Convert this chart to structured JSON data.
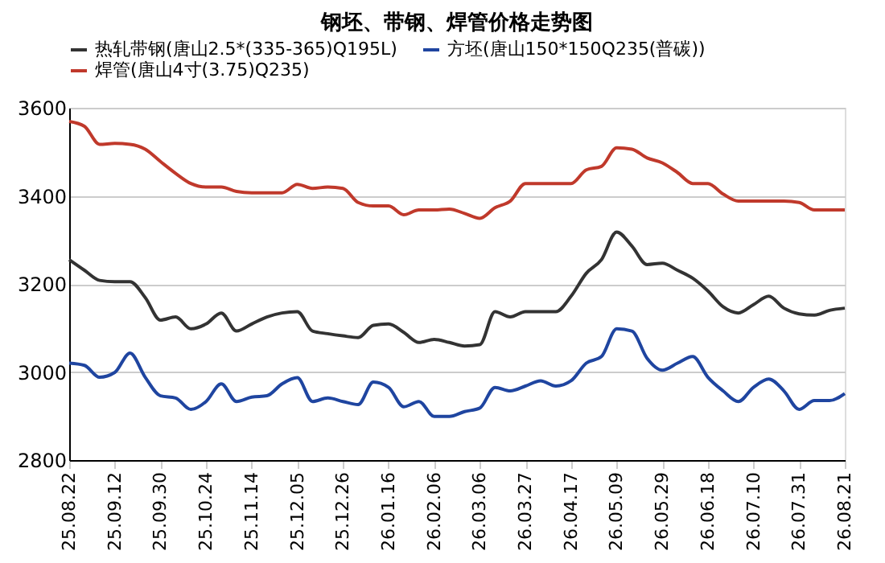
{
  "chart_data": {
    "type": "line",
    "title": "钢坯、带钢、焊管价格走势图",
    "categories": [
      "25.08.22",
      null,
      null,
      "25.09.12",
      null,
      null,
      "25.09.30",
      null,
      null,
      "25.10.24",
      null,
      null,
      "25.11.14",
      null,
      null,
      "25.12.05",
      null,
      null,
      "25.12.26",
      null,
      null,
      "26.01.16",
      null,
      null,
      "26.02.06",
      null,
      null,
      "26.03.06",
      null,
      null,
      "26.03.27",
      null,
      null,
      "26.04.17",
      null,
      null,
      "26.05.09",
      null,
      null,
      "26.05.29",
      null,
      null,
      "26.06.18",
      null,
      null,
      "26.07.10",
      null,
      null,
      "26.07.31",
      null,
      null,
      "26.08.21"
    ],
    "series": [
      {
        "name": "热轧带钢(唐山2.5*(335-365)Q195L)",
        "color": "#333333",
        "values": [
          3255,
          3231,
          3208,
          3205,
          3205,
          3169,
          3118,
          3125,
          3098,
          3109,
          3134,
          3093,
          3109,
          3125,
          3134,
          3137,
          3093,
          3087,
          3082,
          3078,
          3106,
          3109,
          3090,
          3067,
          3074,
          3067,
          3059,
          3062,
          3137,
          3125,
          3137,
          3137,
          3137,
          3172,
          3224,
          3255,
          3318,
          3286,
          3244,
          3247,
          3231,
          3213,
          3184,
          3148,
          3134,
          3153,
          3172,
          3145,
          3132,
          3129,
          3140,
          3145
        ]
      },
      {
        "name": "方坯(唐山150*150Q235(普碳))",
        "color": "#1f45a0",
        "values": [
          3020,
          3015,
          2988,
          2999,
          3043,
          2988,
          2946,
          2941,
          2915,
          2933,
          2973,
          2933,
          2943,
          2946,
          2973,
          2987,
          2933,
          2941,
          2933,
          2926,
          2977,
          2965,
          2921,
          2933,
          2899,
          2899,
          2910,
          2918,
          2965,
          2957,
          2968,
          2980,
          2968,
          2980,
          3020,
          3035,
          3098,
          3093,
          3031,
          3004,
          3020,
          3035,
          2988,
          2957,
          2933,
          2965,
          2984,
          2957,
          2915,
          2935,
          2935,
          2951
        ]
      },
      {
        "name": "焊管(唐山4寸(3.75)Q235)",
        "color": "#c0392b",
        "values": [
          3569,
          3558,
          3517,
          3519,
          3517,
          3506,
          3478,
          3451,
          3428,
          3420,
          3420,
          3410,
          3407,
          3407,
          3407,
          3426,
          3417,
          3420,
          3417,
          3385,
          3377,
          3377,
          3357,
          3368,
          3368,
          3370,
          3360,
          3349,
          3373,
          3388,
          3428,
          3428,
          3428,
          3428,
          3459,
          3467,
          3509,
          3506,
          3486,
          3475,
          3453,
          3428,
          3428,
          3404,
          3388,
          3388,
          3388,
          3388,
          3385,
          3368,
          3368,
          3368
        ]
      }
    ],
    "ylim": [
      2800,
      3600
    ],
    "yticks": [
      2800,
      3000,
      3200,
      3400,
      3600
    ],
    "grid": "y",
    "legend": "top",
    "marker": "none",
    "line_style": "solid"
  }
}
